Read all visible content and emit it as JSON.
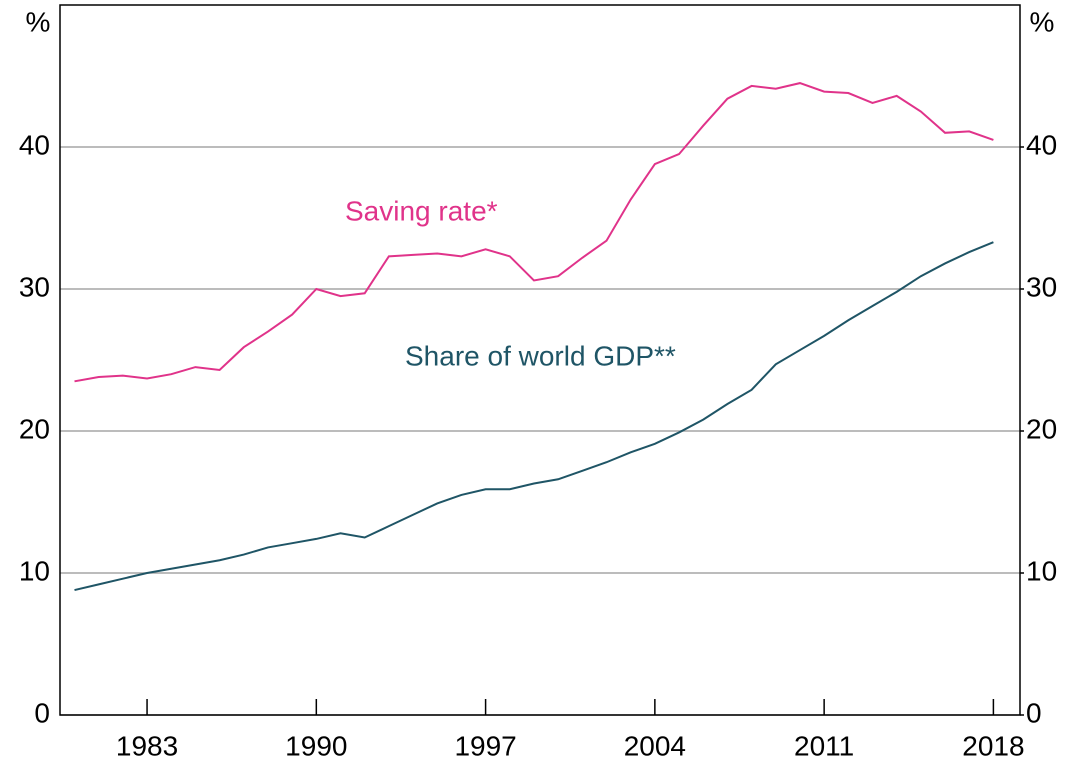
{
  "chart_data": {
    "type": "line",
    "ylabel": "%",
    "y2label": "%",
    "x": [
      1980,
      1981,
      1982,
      1983,
      1984,
      1985,
      1986,
      1987,
      1988,
      1989,
      1990,
      1991,
      1992,
      1993,
      1994,
      1995,
      1996,
      1997,
      1998,
      1999,
      2000,
      2001,
      2002,
      2003,
      2004,
      2005,
      2006,
      2007,
      2008,
      2009,
      2010,
      2011,
      2012,
      2013,
      2014,
      2015,
      2016,
      2017,
      2018
    ],
    "series": [
      {
        "name": "Saving rate*",
        "color": "#e0338a",
        "values": [
          23.5,
          23.8,
          23.9,
          23.7,
          24.0,
          24.5,
          24.3,
          25.9,
          27.0,
          28.2,
          30.0,
          29.5,
          29.7,
          32.3,
          32.4,
          32.5,
          32.3,
          32.8,
          32.3,
          30.6,
          30.9,
          32.2,
          33.4,
          36.3,
          38.8,
          39.5,
          41.5,
          43.4,
          44.3,
          44.1,
          44.5,
          43.9,
          43.8,
          43.1,
          43.6,
          42.5,
          41.0,
          41.1,
          40.5
        ]
      },
      {
        "name": "Share of world GDP**",
        "color": "#1f5566",
        "values": [
          8.8,
          9.2,
          9.6,
          10.0,
          10.3,
          10.6,
          10.9,
          11.3,
          11.8,
          12.1,
          12.4,
          12.8,
          12.5,
          13.3,
          14.1,
          14.9,
          15.5,
          15.9,
          15.9,
          16.3,
          16.6,
          17.2,
          17.8,
          18.5,
          19.1,
          19.9,
          20.8,
          21.9,
          22.9,
          24.7,
          25.7,
          26.7,
          27.8,
          28.8,
          29.8,
          30.9,
          31.8,
          32.6,
          33.3
        ]
      }
    ],
    "xlim": [
      1979.4,
      2019.1
    ],
    "xticks": [
      1983,
      1990,
      1997,
      2004,
      2011,
      2018
    ],
    "ylim": [
      0,
      50
    ],
    "yticks": [
      0,
      10,
      20,
      30,
      40
    ],
    "y2lim": [
      0,
      50
    ],
    "y2ticks": [
      0,
      10,
      20,
      30,
      40
    ],
    "grid": true
  }
}
